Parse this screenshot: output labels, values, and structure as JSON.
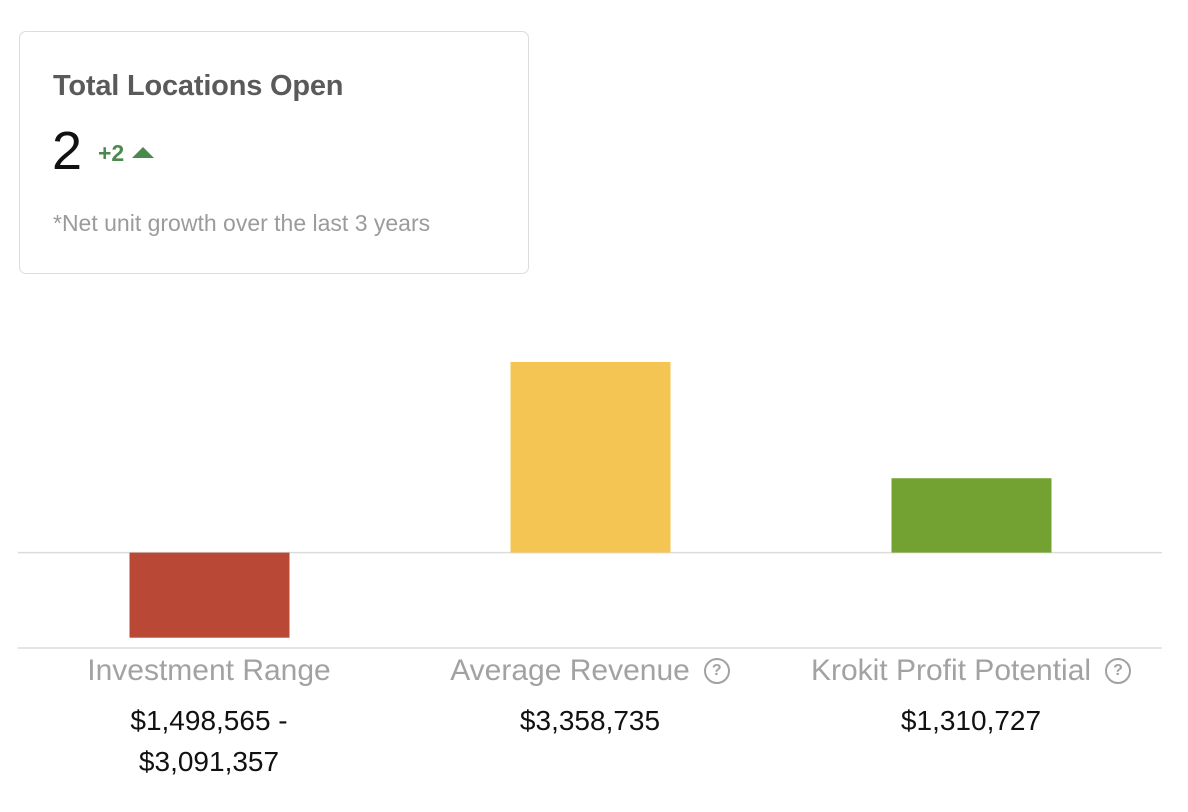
{
  "summary_card": {
    "title": "Total Locations Open",
    "value": "2",
    "delta": "+2",
    "delta_icon": "triangle-up-icon",
    "note": "*Net unit growth over the last 3 years",
    "delta_color": "#4a8a4f"
  },
  "columns": [
    {
      "label": "Investment Range",
      "value_line1": "$1,498,565 -",
      "value_line2": "$3,091,357",
      "has_help": false
    },
    {
      "label": "Average Revenue",
      "value_line1": "$3,358,735",
      "value_line2": "",
      "has_help": true,
      "help_icon": "question-circle-icon"
    },
    {
      "label": "Krokit Profit Potential",
      "value_line1": "$1,310,727",
      "value_line2": "",
      "has_help": true,
      "help_icon": "question-circle-icon"
    }
  ],
  "help_glyph": "?",
  "chart_data": {
    "type": "bar",
    "categories": [
      "Investment Range",
      "Average Revenue",
      "Krokit Profit Potential"
    ],
    "values": [
      -1498565,
      3358735,
      1310727
    ],
    "colors": [
      "#b94837",
      "#f5c553",
      "#74a232"
    ],
    "title": "",
    "xlabel": "",
    "ylabel": "",
    "ylim": [
      -1680000,
      4450000
    ],
    "grid": false,
    "zero_line": true
  }
}
